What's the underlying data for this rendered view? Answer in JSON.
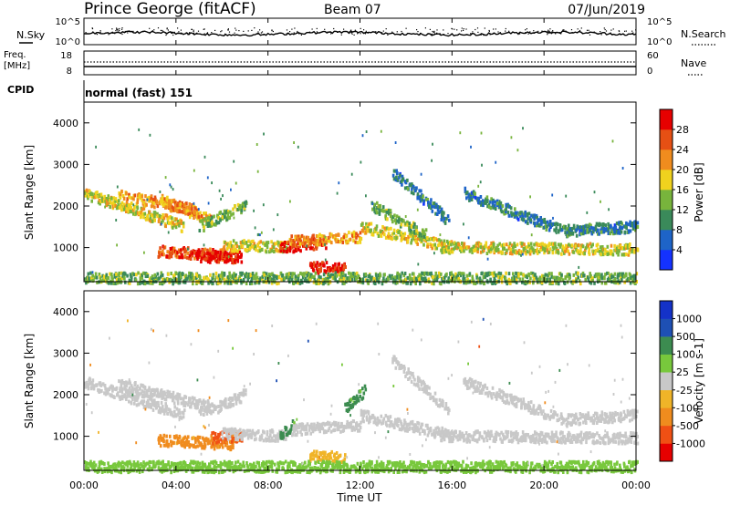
{
  "header": {
    "station": "Prince George (fitACF)",
    "beam": "Beam 07",
    "date": "07/Jun/2019",
    "cpid_label": "CPID",
    "cpid_value": "normal (fast) 151"
  },
  "noise_panel": {
    "left_label": "N.Sky",
    "right_label": "N.Search",
    "left_ticks": [
      "10^5",
      "10^0"
    ],
    "right_ticks": [
      "10^5",
      "10^0"
    ]
  },
  "freq_panel": {
    "left_label_1": "Freq.",
    "left_label_2": "[MHz]",
    "right_label": "Nave",
    "left_ticks": [
      "18",
      "8"
    ],
    "right_ticks": [
      "60",
      "0"
    ]
  },
  "colors": {
    "power_scale": [
      "#1432ff",
      "#1e64c8",
      "#3a8a5a",
      "#78b43c",
      "#f0d21e",
      "#f08c1e",
      "#e65014",
      "#e60000"
    ],
    "velocity_scale": [
      "#e60000",
      "#f05014",
      "#f08c1e",
      "#f0b428",
      "#c8c8c8",
      "#78c83c",
      "#3c8c50",
      "#1e50b4",
      "#1432c8"
    ]
  },
  "chart_data": [
    {
      "type": "heatmap",
      "panel": "power",
      "ylabel": "Slant Range [km]",
      "yticks": [
        "1000",
        "2000",
        "3000",
        "4000"
      ],
      "ylim": [
        180,
        4500
      ],
      "xlim": [
        "00:00",
        "24:00"
      ],
      "colorbar_label": "Power [dB]",
      "colorbar_ticks": [
        "4",
        "8",
        "12",
        "16",
        "20",
        "24",
        "28"
      ],
      "colorbar_range": [
        0,
        30
      ],
      "features": [
        {
          "t0": 0.0,
          "t1": 4.3,
          "r0": 2300,
          "r1": 1500,
          "v": 16
        },
        {
          "t0": 1.5,
          "t1": 4.8,
          "r0": 2250,
          "r1": 1900,
          "v": 20
        },
        {
          "t0": 3.3,
          "t1": 5.5,
          "r0": 2150,
          "r1": 1650,
          "v": 20
        },
        {
          "t0": 5.0,
          "t1": 7.0,
          "r0": 1500,
          "r1": 2000,
          "v": 12
        },
        {
          "t0": 3.2,
          "t1": 6.5,
          "r0": 900,
          "r1": 800,
          "v": 24
        },
        {
          "t0": 4.8,
          "t1": 6.8,
          "r0": 770,
          "r1": 760,
          "v": 28
        },
        {
          "t0": 6.0,
          "t1": 8.8,
          "r0": 1050,
          "r1": 1000,
          "v": 16
        },
        {
          "t0": 8.5,
          "t1": 10.5,
          "r0": 1000,
          "r1": 1100,
          "v": 28
        },
        {
          "t0": 8.9,
          "t1": 12.0,
          "r0": 1150,
          "r1": 1250,
          "v": 20
        },
        {
          "t0": 9.8,
          "t1": 11.3,
          "r0": 520,
          "r1": 500,
          "v": 28
        },
        {
          "t0": 12.0,
          "t1": 16.0,
          "r0": 1500,
          "r1": 1000,
          "v": 16
        },
        {
          "t0": 12.5,
          "t1": 14.8,
          "r0": 2000,
          "r1": 1300,
          "v": 12
        },
        {
          "t0": 13.4,
          "t1": 15.8,
          "r0": 2800,
          "r1": 1650,
          "v": 8
        },
        {
          "t0": 15.5,
          "t1": 24.0,
          "r0": 1000,
          "r1": 950,
          "v": 16
        },
        {
          "t0": 16.5,
          "t1": 21.0,
          "r0": 2300,
          "r1": 1350,
          "v": 8
        },
        {
          "t0": 21.0,
          "t1": 24.0,
          "r0": 1400,
          "r1": 1500,
          "v": 8
        },
        {
          "t0": 0.0,
          "t1": 24.0,
          "r0": 260,
          "r1": 260,
          "v": 12
        }
      ]
    },
    {
      "type": "heatmap",
      "panel": "velocity",
      "ylabel": "Slant Range [km]",
      "yticks": [
        "1000",
        "2000",
        "3000",
        "4000"
      ],
      "ylim": [
        180,
        4500
      ],
      "xlim": [
        "00:00",
        "24:00"
      ],
      "colorbar_label": "Velocity [m s-1]",
      "colorbar_ticks": [
        "1000",
        "500",
        "100",
        "25",
        "-25",
        "-100",
        "-500",
        "-1000"
      ],
      "features": [
        {
          "t0": 0.0,
          "t1": 4.3,
          "r0": 2300,
          "r1": 1500,
          "v": 0
        },
        {
          "t0": 1.5,
          "t1": 5.5,
          "r0": 2250,
          "r1": 1700,
          "v": 0
        },
        {
          "t0": 5.0,
          "t1": 7.0,
          "r0": 1500,
          "r1": 2000,
          "v": 0
        },
        {
          "t0": 3.2,
          "t1": 6.5,
          "r0": 900,
          "r1": 800,
          "v": -200
        },
        {
          "t0": 5.5,
          "t1": 6.8,
          "r0": 950,
          "r1": 1000,
          "v": -400
        },
        {
          "t0": 6.0,
          "t1": 8.8,
          "r0": 1050,
          "r1": 1000,
          "v": 0
        },
        {
          "t0": 8.5,
          "t1": 9.1,
          "r0": 1000,
          "r1": 1300,
          "v": 200
        },
        {
          "t0": 9.0,
          "t1": 12.0,
          "r0": 1150,
          "r1": 1250,
          "v": 0
        },
        {
          "t0": 9.8,
          "t1": 11.3,
          "r0": 520,
          "r1": 500,
          "v": -60
        },
        {
          "t0": 11.3,
          "t1": 12.2,
          "r0": 1650,
          "r1": 2100,
          "v": 200
        },
        {
          "t0": 12.0,
          "t1": 16.0,
          "r0": 1500,
          "r1": 1000,
          "v": 0
        },
        {
          "t0": 13.4,
          "t1": 15.8,
          "r0": 2800,
          "r1": 1650,
          "v": 0
        },
        {
          "t0": 15.5,
          "t1": 24.0,
          "r0": 1000,
          "r1": 950,
          "v": 0
        },
        {
          "t0": 16.5,
          "t1": 21.0,
          "r0": 2300,
          "r1": 1350,
          "v": 0
        },
        {
          "t0": 21.0,
          "t1": 24.0,
          "r0": 1400,
          "r1": 1500,
          "v": 0
        },
        {
          "t0": 0.0,
          "t1": 24.0,
          "r0": 260,
          "r1": 260,
          "v": 60
        }
      ]
    }
  ],
  "x_axis": {
    "ticks": [
      "00:00",
      "04:00",
      "08:00",
      "12:00",
      "16:00",
      "20:00",
      "00:00"
    ],
    "label": "Time UT"
  }
}
